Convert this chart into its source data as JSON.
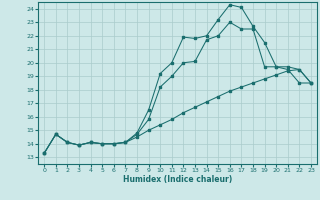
{
  "bg_color": "#cde8e8",
  "grid_color": "#aacccc",
  "line_color": "#1a6e6e",
  "xlabel": "Humidex (Indice chaleur)",
  "xlim": [
    -0.5,
    23.5
  ],
  "ylim": [
    12.5,
    24.5
  ],
  "xticks": [
    0,
    1,
    2,
    3,
    4,
    5,
    6,
    7,
    8,
    9,
    10,
    11,
    12,
    13,
    14,
    15,
    16,
    17,
    18,
    19,
    20,
    21,
    22,
    23
  ],
  "yticks": [
    13,
    14,
    15,
    16,
    17,
    18,
    19,
    20,
    21,
    22,
    23,
    24
  ],
  "line1_x": [
    0,
    1,
    2,
    3,
    4,
    5,
    6,
    7,
    8,
    9,
    10,
    11,
    12,
    13,
    14,
    15,
    16,
    17,
    18,
    19,
    20,
    21,
    22,
    23
  ],
  "line1_y": [
    13.3,
    14.7,
    14.1,
    13.9,
    14.1,
    14.0,
    14.0,
    14.1,
    14.8,
    16.5,
    19.2,
    20.0,
    21.9,
    21.8,
    22.0,
    23.2,
    24.3,
    24.1,
    22.7,
    21.5,
    19.7,
    19.7,
    19.5,
    18.5
  ],
  "line2_x": [
    0,
    1,
    2,
    3,
    4,
    5,
    6,
    7,
    8,
    9,
    10,
    11,
    12,
    13,
    14,
    15,
    16,
    17,
    18,
    19,
    20,
    21,
    22,
    23
  ],
  "line2_y": [
    13.3,
    14.7,
    14.1,
    13.9,
    14.1,
    14.0,
    14.0,
    14.1,
    14.7,
    15.8,
    18.2,
    19.0,
    20.0,
    20.1,
    21.7,
    22.0,
    23.0,
    22.5,
    22.5,
    19.7,
    19.7,
    19.5,
    18.5,
    18.5
  ],
  "line3_x": [
    0,
    1,
    2,
    3,
    4,
    5,
    6,
    7,
    8,
    9,
    10,
    11,
    12,
    13,
    14,
    15,
    16,
    17,
    18,
    19,
    20,
    21,
    22,
    23
  ],
  "line3_y": [
    13.3,
    14.7,
    14.1,
    13.9,
    14.1,
    14.0,
    14.0,
    14.1,
    14.5,
    15.0,
    15.4,
    15.8,
    16.3,
    16.7,
    17.1,
    17.5,
    17.9,
    18.2,
    18.5,
    18.8,
    19.1,
    19.4,
    19.5,
    18.5
  ]
}
